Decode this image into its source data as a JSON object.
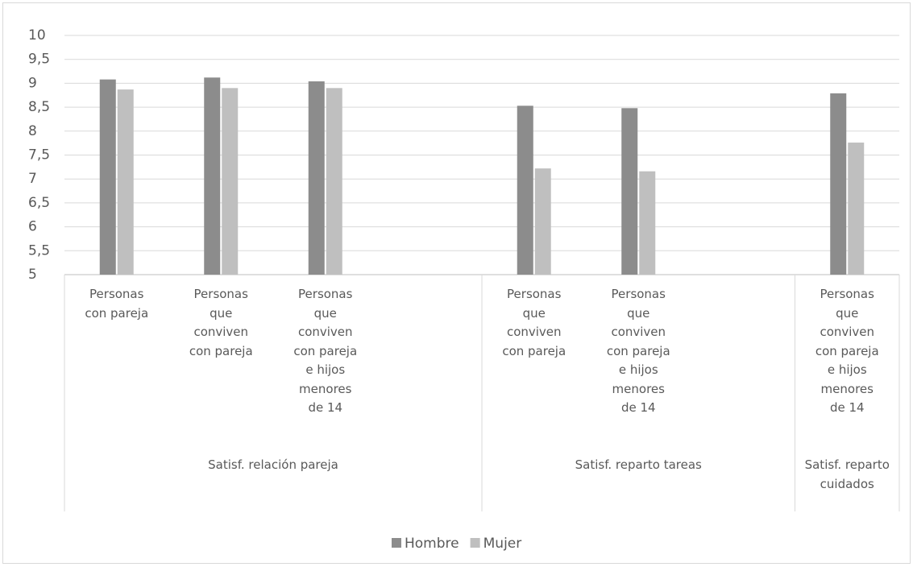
{
  "chart_data": {
    "type": "bar",
    "categories": [
      "Personas con pareja",
      "Personas que conviven con pareja",
      "Personas que conviven con pareja e hijos menores de 14",
      null,
      "Personas que conviven con pareja",
      "Personas que conviven con pareja e hijos menores de 14",
      null,
      "Personas que conviven con pareja e hijos menores de 14"
    ],
    "groups": [
      {
        "name": "Satisf. relación pareja",
        "count": 4
      },
      {
        "name": "Satisf. reparto tareas",
        "count": 3
      },
      {
        "name": "Satisf. reparto cuidados",
        "count": 1
      }
    ],
    "series": [
      {
        "name": "Hombre",
        "color": "#8c8c8c",
        "values": [
          9.08,
          9.12,
          9.04,
          null,
          8.53,
          8.48,
          null,
          8.79
        ]
      },
      {
        "name": "Mujer",
        "color": "#bfbfbf",
        "values": [
          8.87,
          8.9,
          8.9,
          null,
          7.22,
          7.16,
          null,
          7.76
        ]
      }
    ],
    "ylim": [
      5,
      10
    ],
    "yticks": [
      5,
      {
        "value": 5.5,
        "label": "5,5"
      },
      6,
      {
        "value": 6.5,
        "label": "6,5"
      },
      7,
      {
        "value": 7.5,
        "label": "7,5"
      },
      8,
      {
        "value": 8.5,
        "label": "8,5"
      },
      9,
      {
        "value": 9.5,
        "label": "9,5"
      },
      10
    ],
    "grid": true,
    "legend": "bottom"
  }
}
